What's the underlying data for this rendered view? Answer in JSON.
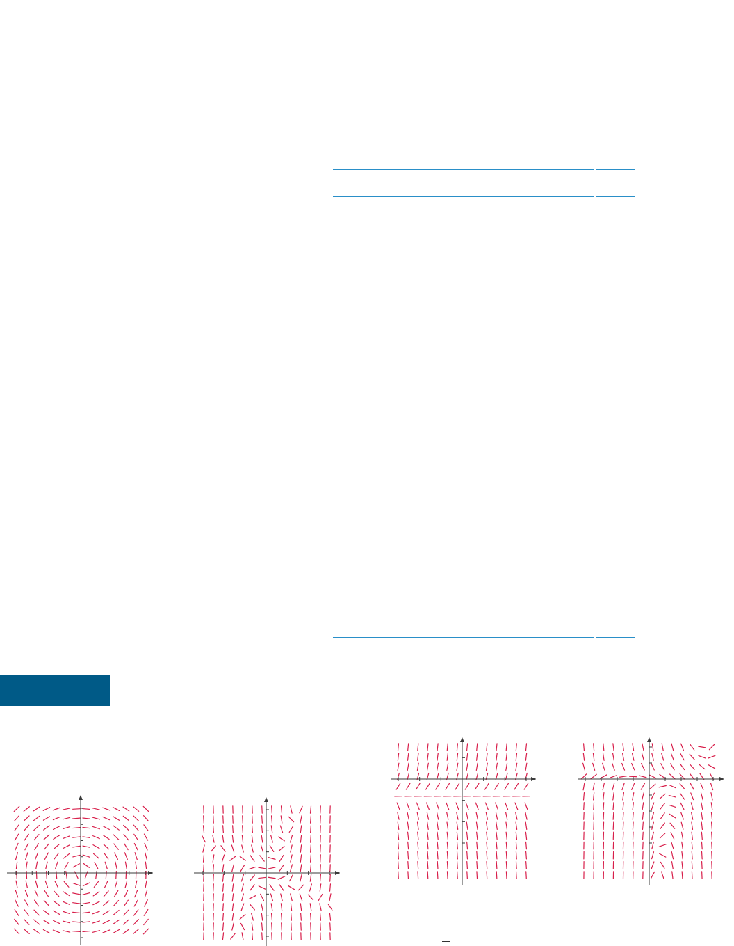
{
  "colors": {
    "rule": "#2a8fc8",
    "exercise_tab": "#005a87",
    "field": "#d81e4a",
    "axis": "#3a3a3a"
  },
  "figures": [
    {
      "id": "a",
      "field": "rotation",
      "axis_ticks": 4
    },
    {
      "id": "b",
      "field": "mixed_saddle",
      "axis_ticks": 3
    },
    {
      "id": "c",
      "field": "horizontal_band",
      "axis_ticks": 3
    },
    {
      "id": "d",
      "field": "swirl_shear",
      "axis_ticks": 4
    }
  ]
}
